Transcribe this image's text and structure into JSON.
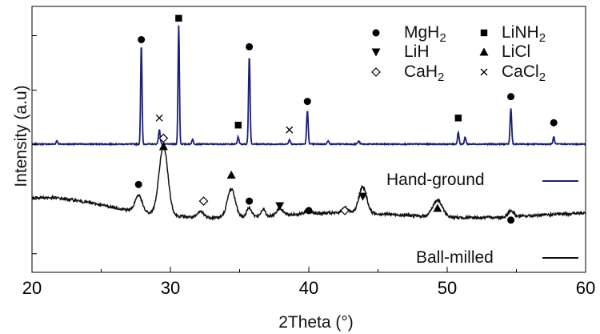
{
  "chart_data": {
    "type": "line",
    "title": "",
    "xlabel": "2Theta (°)",
    "ylabel": "Intensity (a.u)",
    "xlim": [
      20,
      60
    ],
    "xticks": [
      20,
      30,
      40,
      50,
      60
    ],
    "yticks_labeled": false,
    "grid": false,
    "series": [
      {
        "name": "Hand-ground",
        "color": "#1a1f7a",
        "baseline": 0.54,
        "peaks": [
          {
            "x": 21.8,
            "h": 0.015,
            "w": 0.08
          },
          {
            "x": 27.9,
            "h": 0.42,
            "w": 0.07
          },
          {
            "x": 29.2,
            "h": 0.06,
            "w": 0.09
          },
          {
            "x": 30.6,
            "h": 0.5,
            "w": 0.07
          },
          {
            "x": 31.6,
            "h": 0.02,
            "w": 0.08
          },
          {
            "x": 34.9,
            "h": 0.03,
            "w": 0.08
          },
          {
            "x": 35.7,
            "h": 0.37,
            "w": 0.08
          },
          {
            "x": 38.6,
            "h": 0.018,
            "w": 0.09
          },
          {
            "x": 39.9,
            "h": 0.14,
            "w": 0.08
          },
          {
            "x": 41.4,
            "h": 0.012,
            "w": 0.1
          },
          {
            "x": 43.6,
            "h": 0.012,
            "w": 0.1
          },
          {
            "x": 50.8,
            "h": 0.05,
            "w": 0.08
          },
          {
            "x": 51.3,
            "h": 0.03,
            "w": 0.08
          },
          {
            "x": 54.6,
            "h": 0.15,
            "w": 0.08
          },
          {
            "x": 57.7,
            "h": 0.03,
            "w": 0.08
          }
        ]
      },
      {
        "name": "Ball-milled",
        "color": "#111111",
        "baseline": 0.24,
        "peaks": [
          {
            "x": 27.7,
            "h": 0.07,
            "w": 0.35
          },
          {
            "x": 29.5,
            "h": 0.29,
            "w": 0.45
          },
          {
            "x": 32.2,
            "h": 0.025,
            "w": 0.3
          },
          {
            "x": 34.4,
            "h": 0.12,
            "w": 0.4
          },
          {
            "x": 35.7,
            "h": 0.04,
            "w": 0.25
          },
          {
            "x": 36.7,
            "h": 0.03,
            "w": 0.2
          },
          {
            "x": 37.9,
            "h": 0.03,
            "w": 0.3
          },
          {
            "x": 40.0,
            "h": 0.015,
            "w": 0.3
          },
          {
            "x": 42.6,
            "h": 0.02,
            "w": 0.3
          },
          {
            "x": 43.9,
            "h": 0.11,
            "w": 0.4
          },
          {
            "x": 49.3,
            "h": 0.07,
            "w": 0.5
          },
          {
            "x": 54.6,
            "h": 0.025,
            "w": 0.3
          }
        ]
      }
    ],
    "series_labels": [
      {
        "text": "Hand-ground",
        "series": 0
      },
      {
        "text": "Ball-milled",
        "series": 1
      }
    ],
    "legend": {
      "placement": "top-right",
      "entries": [
        {
          "label": "MgH",
          "sub": "2",
          "marker": "circle"
        },
        {
          "label": "LiNH",
          "sub": "2",
          "marker": "square"
        },
        {
          "label": "LiH",
          "sub": "",
          "marker": "triangle-down"
        },
        {
          "label": "LiCl",
          "sub": "",
          "marker": "triangle-up"
        },
        {
          "label": "CaH",
          "sub": "2",
          "marker": "diamond"
        },
        {
          "label": "CaCl",
          "sub": "2",
          "marker": "cross"
        }
      ]
    },
    "markers": [
      {
        "x": 27.9,
        "y": 0.98,
        "marker": "circle"
      },
      {
        "x": 30.6,
        "y": 1.07,
        "marker": "square"
      },
      {
        "x": 35.7,
        "y": 0.95,
        "marker": "circle"
      },
      {
        "x": 39.9,
        "y": 0.72,
        "marker": "circle"
      },
      {
        "x": 54.6,
        "y": 0.74,
        "marker": "circle"
      },
      {
        "x": 57.7,
        "y": 0.63,
        "marker": "circle"
      },
      {
        "x": 29.2,
        "y": 0.65,
        "marker": "cross"
      },
      {
        "x": 34.9,
        "y": 0.62,
        "marker": "square"
      },
      {
        "x": 38.6,
        "y": 0.6,
        "marker": "cross"
      },
      {
        "x": 50.8,
        "y": 0.65,
        "marker": "square"
      },
      {
        "x": 27.7,
        "y": 0.37,
        "marker": "circle"
      },
      {
        "x": 29.5,
        "y": 0.565,
        "marker": "diamond"
      },
      {
        "x": 29.5,
        "y": 0.53,
        "marker": "triangle-up"
      },
      {
        "x": 32.4,
        "y": 0.3,
        "marker": "diamond"
      },
      {
        "x": 34.4,
        "y": 0.41,
        "marker": "triangle-up"
      },
      {
        "x": 35.7,
        "y": 0.3,
        "marker": "circle"
      },
      {
        "x": 37.9,
        "y": 0.28,
        "marker": "triangle-down"
      },
      {
        "x": 40.0,
        "y": 0.26,
        "marker": "circle"
      },
      {
        "x": 42.6,
        "y": 0.26,
        "marker": "diamond"
      },
      {
        "x": 43.9,
        "y": 0.32,
        "marker": "triangle-down"
      },
      {
        "x": 49.3,
        "y": 0.27,
        "marker": "triangle-up"
      },
      {
        "x": 54.6,
        "y": 0.22,
        "marker": "circle"
      }
    ]
  }
}
